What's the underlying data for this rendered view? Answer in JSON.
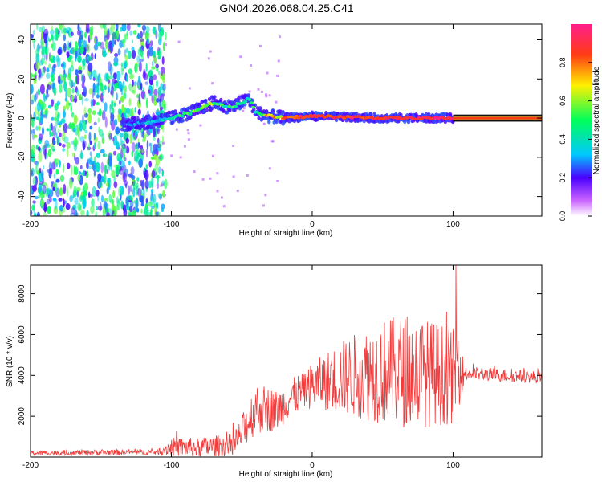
{
  "title": "GN04.2026.068.04.25.C41",
  "colors": {
    "snr_line": "#f23b3b",
    "axis": "#000000",
    "background": "#ffffff"
  },
  "chart_data": [
    {
      "type": "heatmap",
      "name": "spectrogram",
      "xlabel": "Height of straight line (km)",
      "ylabel": "Frequency (Hz)",
      "xlim": [
        -200,
        163
      ],
      "ylim": [
        -50,
        48
      ],
      "xticks": [
        -200,
        -100,
        0,
        100
      ],
      "yticks": [
        -40,
        -20,
        0,
        20,
        40
      ],
      "noise_region_x": [
        -200,
        -110
      ],
      "noise_amplitude_range": [
        0.15,
        0.6
      ],
      "ridge": [
        {
          "x": -130,
          "y": -3,
          "amp": 0.25
        },
        {
          "x": -115,
          "y": -2,
          "amp": 0.35
        },
        {
          "x": -100,
          "y": 0,
          "amp": 0.45
        },
        {
          "x": -85,
          "y": 3,
          "amp": 0.55
        },
        {
          "x": -70,
          "y": 8,
          "amp": 0.55
        },
        {
          "x": -62,
          "y": 6,
          "amp": 0.45
        },
        {
          "x": -55,
          "y": 6,
          "amp": 0.5
        },
        {
          "x": -45,
          "y": 10,
          "amp": 0.4
        },
        {
          "x": -40,
          "y": 3,
          "amp": 0.5
        },
        {
          "x": -30,
          "y": 1,
          "amp": 0.75
        },
        {
          "x": -20,
          "y": 0,
          "amp": 0.9
        },
        {
          "x": 0,
          "y": 1,
          "amp": 0.95
        },
        {
          "x": 50,
          "y": 0,
          "amp": 0.95
        },
        {
          "x": 100,
          "y": 0,
          "amp": 1.0
        },
        {
          "x": 163,
          "y": 0,
          "amp": 1.0
        }
      ],
      "colorbar": {
        "label": "Normalized spectral amplitude",
        "range": [
          0,
          1
        ],
        "ticks": [
          "0.0",
          "0.2",
          "0.4",
          "0.6",
          "0.8"
        ]
      }
    },
    {
      "type": "line",
      "name": "snr",
      "xlabel": "Height of straight line (km)",
      "ylabel": "SNR (10 * v/v)",
      "xlim": [
        -200,
        163
      ],
      "ylim": [
        0,
        9400
      ],
      "xticks": [
        -200,
        -100,
        0,
        100
      ],
      "yticks": [
        2000,
        4000,
        6000,
        8000
      ],
      "trend": [
        {
          "x": -200,
          "base": 200,
          "noise": 120
        },
        {
          "x": -110,
          "base": 250,
          "noise": 150
        },
        {
          "x": -100,
          "base": 500,
          "noise": 450
        },
        {
          "x": -80,
          "base": 450,
          "noise": 500
        },
        {
          "x": -55,
          "base": 600,
          "noise": 600
        },
        {
          "x": -40,
          "base": 2400,
          "noise": 1300
        },
        {
          "x": -25,
          "base": 2300,
          "noise": 1000
        },
        {
          "x": -15,
          "base": 2900,
          "noise": 900
        },
        {
          "x": 0,
          "base": 3500,
          "noise": 1100
        },
        {
          "x": 20,
          "base": 3900,
          "noise": 1800
        },
        {
          "x": 50,
          "base": 4200,
          "noise": 2600
        },
        {
          "x": 70,
          "base": 4200,
          "noise": 2800
        },
        {
          "x": 100,
          "base": 4000,
          "noise": 2400
        },
        {
          "x": 110,
          "base": 4100,
          "noise": 350
        },
        {
          "x": 163,
          "base": 3900,
          "noise": 300
        }
      ],
      "peak": {
        "x": 102,
        "y": 9400
      }
    }
  ]
}
